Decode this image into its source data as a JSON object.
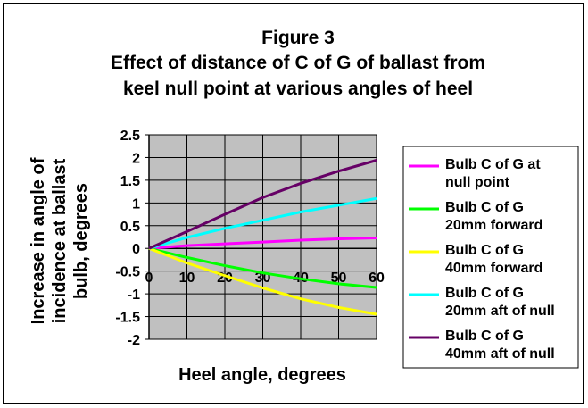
{
  "chart_data": {
    "type": "line",
    "title_lines": [
      "Figure 3",
      "Effect of distance of C of G of ballast from",
      "keel null point at various angles of heel"
    ],
    "xlabel": "Heel angle, degrees",
    "ylabel_lines": [
      "Increase in angle of",
      "incidence at ballast",
      "bulb, degrees"
    ],
    "xlim": [
      0,
      60
    ],
    "ylim": [
      -2,
      2.5
    ],
    "xticks": [
      "0",
      "10",
      "20",
      "30",
      "40",
      "50",
      "60"
    ],
    "yticks": [
      "2.5",
      "2",
      "1.5",
      "1",
      "0.5",
      "0",
      "-0.5",
      "-1",
      "-1.5",
      "-2"
    ],
    "grid": true,
    "plot_background": "#c0c0c0",
    "legend_position": "right",
    "x": [
      0,
      10,
      20,
      30,
      40,
      50,
      60
    ],
    "series": [
      {
        "name_lines": [
          "Bulb C of G at",
          "null point"
        ],
        "color": "#ff00ff",
        "values": [
          0,
          0.06,
          0.1,
          0.14,
          0.18,
          0.21,
          0.23
        ]
      },
      {
        "name_lines": [
          "Bulb C of G",
          "20mm forward"
        ],
        "color": "#00ff00",
        "values": [
          0,
          -0.2,
          -0.38,
          -0.54,
          -0.67,
          -0.78,
          -0.86
        ]
      },
      {
        "name_lines": [
          "Bulb C of G",
          "40mm forward"
        ],
        "color": "#ffff00",
        "values": [
          0,
          -0.32,
          -0.6,
          -0.87,
          -1.11,
          -1.3,
          -1.45
        ]
      },
      {
        "name_lines": [
          "Bulb C of G",
          "20mm aft of null"
        ],
        "color": "#00ffff",
        "values": [
          0,
          0.24,
          0.44,
          0.62,
          0.8,
          0.95,
          1.1
        ]
      },
      {
        "name_lines": [
          "Bulb C of G",
          "40mm aft of null"
        ],
        "color": "#660066",
        "values": [
          0,
          0.37,
          0.75,
          1.12,
          1.43,
          1.7,
          1.94
        ]
      }
    ]
  }
}
